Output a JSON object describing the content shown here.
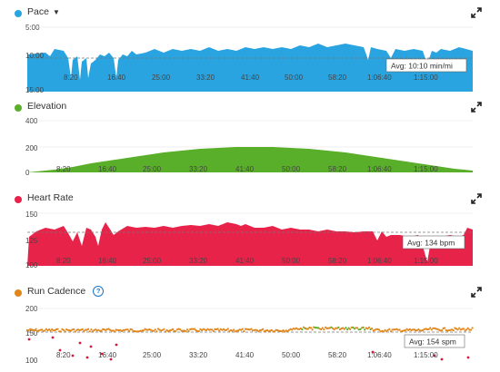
{
  "panels": [
    {
      "key": "pace",
      "title": "Pace",
      "dropdown": true,
      "color": "#2aa4e0",
      "y_labels": [
        "5:00",
        "10:00",
        "15:00"
      ],
      "avg_label": "Avg: 10:10 min/mi",
      "x_ticks": [
        "8:20",
        "16:40",
        "25:00",
        "33:20",
        "41:40",
        "50:00",
        "58:20",
        "1:06:40",
        "1:15:00"
      ]
    },
    {
      "key": "elevation",
      "title": "Elevation",
      "color": "#5aaf2a",
      "y_labels": [
        "400",
        "200",
        "0"
      ],
      "x_ticks": [
        "8:20",
        "16:40",
        "25:00",
        "33:20",
        "41:40",
        "50:00",
        "58:20",
        "1:06:40",
        "1:15:00"
      ]
    },
    {
      "key": "heart_rate",
      "title": "Heart Rate",
      "color": "#e8234a",
      "y_labels": [
        "150",
        "125",
        "100"
      ],
      "avg_label": "Avg: 134 bpm",
      "x_ticks": [
        "8:20",
        "16:40",
        "25:00",
        "33:20",
        "41:40",
        "50:00",
        "58:20",
        "1:06:40",
        "1:15:00"
      ]
    },
    {
      "key": "run_cadence",
      "title": "Run Cadence",
      "help": "?",
      "color": "#e0861a",
      "y_labels": [
        "200",
        "150",
        "100"
      ],
      "avg_label": "Avg: 154 spm",
      "x_ticks": [
        "8:20",
        "16:40",
        "25:00",
        "33:20",
        "41:40",
        "50:00",
        "58:20",
        "1:06:40",
        "1:15:00"
      ]
    }
  ],
  "icons": {
    "expand": "expand-arrows-icon",
    "dropdown": "caret-down-icon",
    "help": "help-circle-icon"
  }
}
